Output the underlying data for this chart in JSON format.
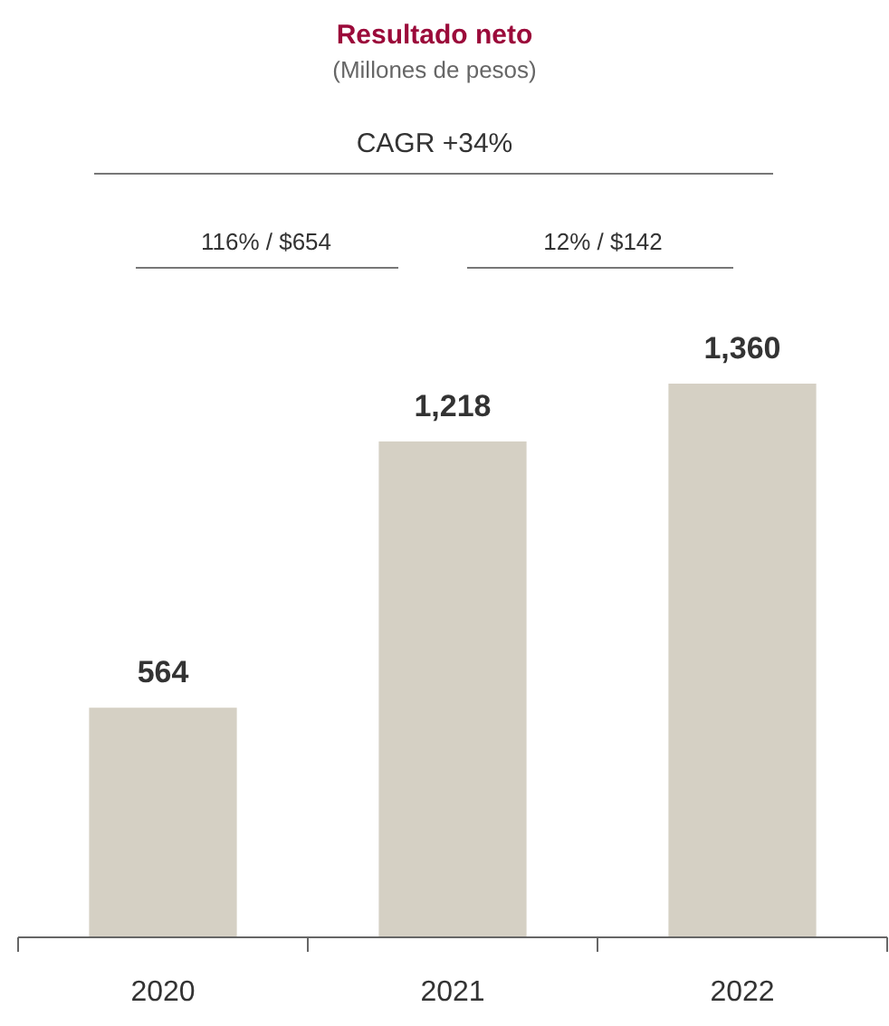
{
  "chart_data": {
    "type": "bar",
    "title": "Resultado neto",
    "subtitle": "(Millones de pesos)",
    "categories": [
      "2020",
      "2021",
      "2022"
    ],
    "values": [
      564,
      1218,
      1360
    ],
    "color": "#d5d0c4",
    "value_labels": [
      "564",
      "1,218",
      "1,360"
    ],
    "annotations": [
      "CAGR +34%",
      "116% / $654",
      "12% / $142"
    ]
  }
}
